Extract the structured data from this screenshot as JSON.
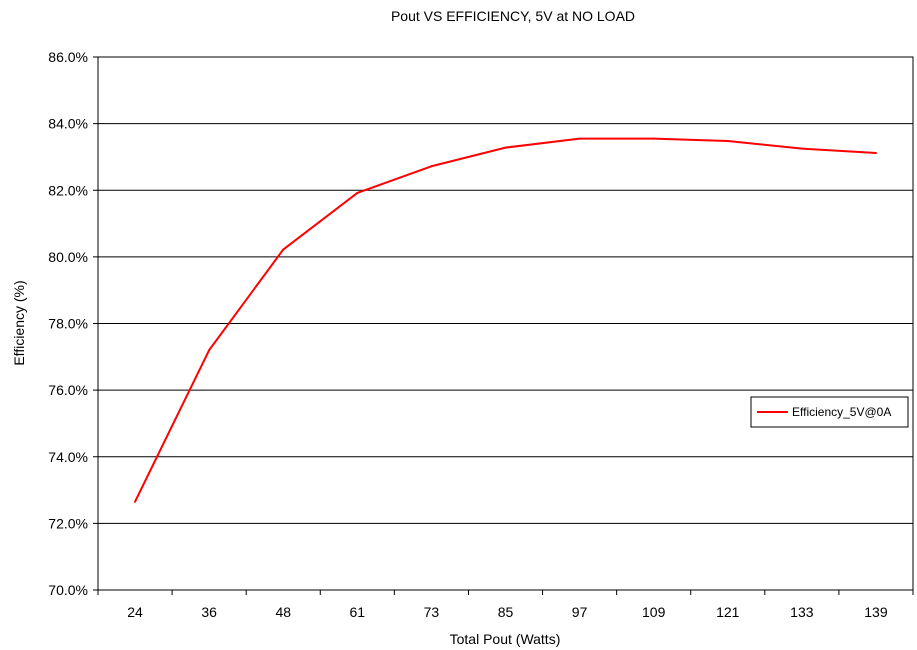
{
  "chart_data": {
    "type": "line",
    "title": "Pout VS EFFICIENCY,  5V at NO LOAD",
    "xlabel": "Total Pout (Watts)",
    "ylabel": "Efficiency (%)",
    "categories": [
      "24",
      "36",
      "48",
      "61",
      "73",
      "85",
      "97",
      "109",
      "121",
      "133",
      "139"
    ],
    "series": [
      {
        "name": "Efficiency_5V@0A",
        "color": "#ff0000",
        "values": [
          72.65,
          77.2,
          80.22,
          81.92,
          82.72,
          83.28,
          83.55,
          83.55,
          83.48,
          83.25,
          83.12
        ]
      }
    ],
    "ylim": [
      70,
      86
    ],
    "ytick_step": 2,
    "ytick_labels": [
      "70.0%",
      "72.0%",
      "74.0%",
      "76.0%",
      "78.0%",
      "80.0%",
      "82.0%",
      "84.0%",
      "86.0%"
    ],
    "grid": true,
    "legend": "right"
  }
}
